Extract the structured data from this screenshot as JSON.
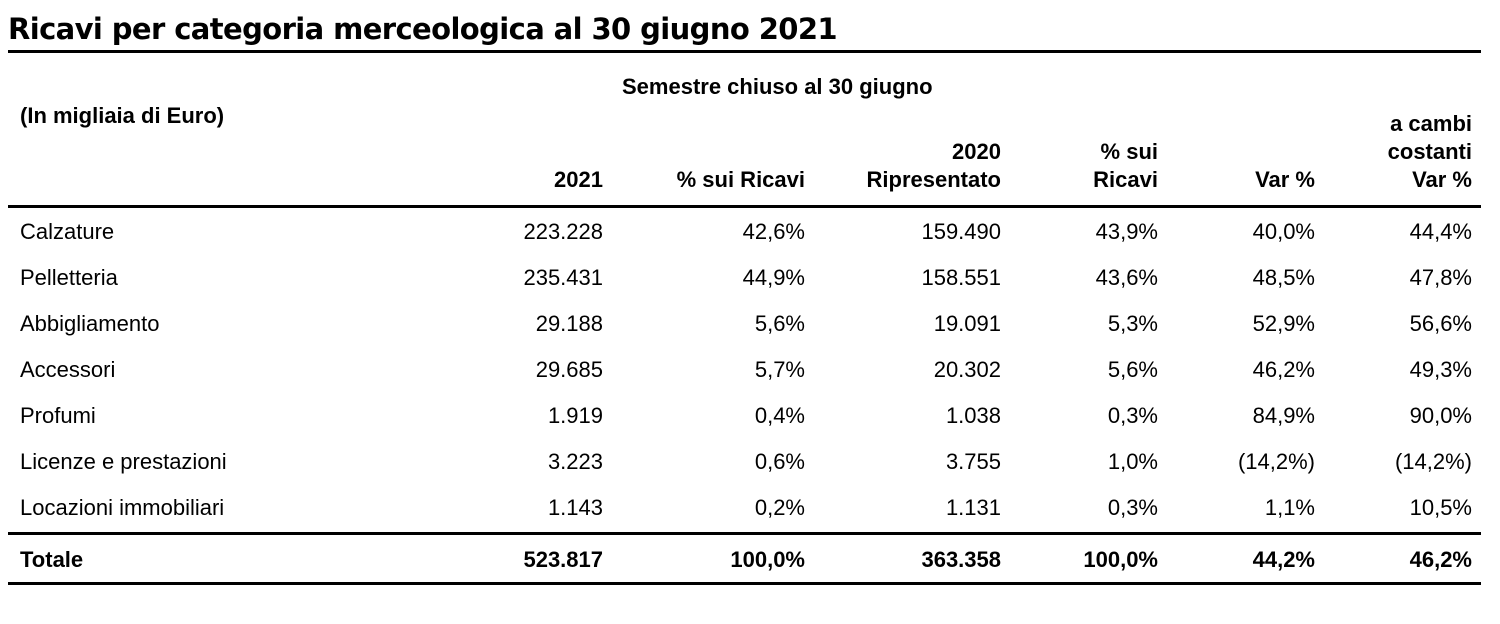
{
  "title": "Ricavi per categoria merceologica al 30 giugno 2021",
  "unit_label": "(In migliaia di Euro)",
  "period_header": "Semestre chiuso al 30 giugno",
  "columns": [
    {
      "lines": [
        "2021"
      ]
    },
    {
      "lines": [
        "% sui Ricavi"
      ]
    },
    {
      "lines": [
        "2020",
        "Ripresentato"
      ]
    },
    {
      "lines": [
        "% sui",
        "Ricavi"
      ]
    },
    {
      "lines": [
        "Var %"
      ]
    },
    {
      "lines": [
        "a cambi",
        "costanti",
        "Var %"
      ]
    }
  ],
  "rows": [
    {
      "label": "Calzature",
      "values": [
        "223.228",
        "42,6%",
        "159.490",
        "43,9%",
        "40,0%",
        "44,4%"
      ]
    },
    {
      "label": "Pelletteria",
      "values": [
        "235.431",
        "44,9%",
        "158.551",
        "43,6%",
        "48,5%",
        "47,8%"
      ]
    },
    {
      "label": "Abbigliamento",
      "values": [
        "29.188",
        "5,6%",
        "19.091",
        "5,3%",
        "52,9%",
        "56,6%"
      ]
    },
    {
      "label": "Accessori",
      "values": [
        "29.685",
        "5,7%",
        "20.302",
        "5,6%",
        "46,2%",
        "49,3%"
      ]
    },
    {
      "label": "Profumi",
      "values": [
        "1.919",
        "0,4%",
        "1.038",
        "0,3%",
        "84,9%",
        "90,0%"
      ]
    },
    {
      "label": "Licenze e prestazioni",
      "values": [
        "3.223",
        "0,6%",
        "3.755",
        "1,0%",
        "(14,2%)",
        "(14,2%)"
      ]
    },
    {
      "label": "Locazioni immobiliari",
      "values": [
        "1.143",
        "0,2%",
        "1.131",
        "0,3%",
        "1,1%",
        "10,5%"
      ]
    }
  ],
  "total": {
    "label": "Totale",
    "values": [
      "523.817",
      "100,0%",
      "363.358",
      "100,0%",
      "44,2%",
      "46,2%"
    ]
  }
}
